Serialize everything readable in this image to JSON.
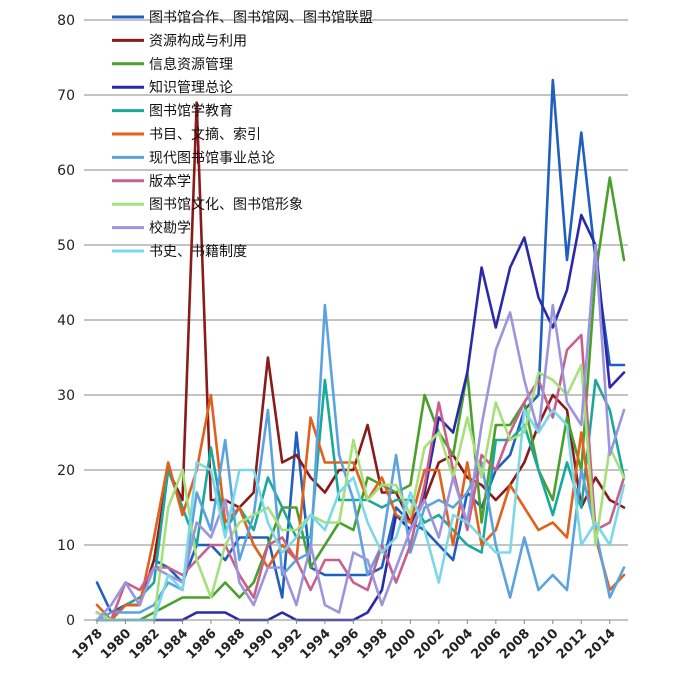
{
  "chart_data": {
    "type": "line",
    "title": "",
    "xlabel": "",
    "ylabel": "",
    "x": [
      1978,
      1979,
      1980,
      1981,
      1982,
      1983,
      1984,
      1985,
      1986,
      1987,
      1988,
      1989,
      1990,
      1991,
      1992,
      1993,
      1994,
      1995,
      1996,
      1997,
      1998,
      1999,
      2000,
      2001,
      2002,
      2003,
      2004,
      2005,
      2006,
      2007,
      2008,
      2009,
      2010,
      2011,
      2012,
      2013,
      2014,
      2015
    ],
    "x_ticks": [
      "1978",
      "1980",
      "1982",
      "1984",
      "1986",
      "1988",
      "1990",
      "1992",
      "1994",
      "1996",
      "1998",
      "2000",
      "2002",
      "2004",
      "2006",
      "2008",
      "2010",
      "2012",
      "2014"
    ],
    "y_ticks": [
      "0",
      "10",
      "20",
      "30",
      "40",
      "50",
      "60",
      "70",
      "80"
    ],
    "ylim": [
      0,
      80
    ],
    "grid": "horizontal",
    "legend_position": "top-left",
    "series": [
      {
        "name": "图书馆合作、图书馆网、图书馆联盟",
        "color": "#1f5fbf",
        "values": [
          5,
          1,
          2,
          2,
          8,
          7,
          5,
          10,
          10,
          8,
          11,
          11,
          11,
          3,
          25,
          7,
          6,
          6,
          6,
          6,
          7,
          15,
          13,
          12,
          10,
          8,
          17,
          15,
          20,
          22,
          28,
          30,
          72,
          48,
          65,
          48,
          34,
          34
        ]
      },
      {
        "name": "资源构成与利用",
        "color": "#8b1a1a",
        "values": [
          1,
          0,
          2,
          2,
          8,
          20,
          16,
          69,
          16,
          16,
          15,
          17,
          35,
          21,
          22,
          19,
          17,
          20,
          20,
          26,
          17,
          17,
          13,
          16,
          21,
          22,
          19,
          18,
          16,
          18,
          21,
          26,
          30,
          28,
          15,
          19,
          16,
          15
        ]
      },
      {
        "name": "信息资源管理",
        "color": "#4aa02c",
        "values": [
          0,
          0,
          0,
          0,
          1,
          2,
          3,
          3,
          3,
          5,
          3,
          5,
          10,
          15,
          15,
          7,
          10,
          13,
          12,
          19,
          18,
          17,
          18,
          30,
          25,
          22,
          33,
          13,
          26,
          26,
          29,
          20,
          16,
          27,
          20,
          46,
          59,
          48
        ]
      },
      {
        "name": "知识管理总论",
        "color": "#2a2aa8",
        "values": [
          0,
          0,
          0,
          0,
          0,
          0,
          0,
          1,
          1,
          1,
          0,
          0,
          0,
          1,
          0,
          0,
          0,
          0,
          0,
          1,
          4,
          14,
          12,
          17,
          27,
          25,
          33,
          47,
          39,
          47,
          51,
          43,
          39,
          44,
          54,
          50,
          31,
          33
        ]
      },
      {
        "name": "图书馆学教育",
        "color": "#1aa89c",
        "values": [
          1,
          0,
          2,
          3,
          5,
          20,
          15,
          10,
          23,
          12,
          15,
          12,
          19,
          15,
          11,
          11,
          32,
          16,
          16,
          16,
          15,
          16,
          16,
          13,
          14,
          12,
          10,
          9,
          24,
          24,
          26,
          20,
          14,
          21,
          15,
          32,
          28,
          19
        ]
      },
      {
        "name": "书目、文摘、索引",
        "color": "#e0601c",
        "values": [
          2,
          0,
          2,
          2,
          11,
          21,
          14,
          20,
          30,
          13,
          15,
          10,
          7,
          10,
          8,
          27,
          21,
          21,
          21,
          16,
          19,
          14,
          13,
          20,
          20,
          10,
          21,
          10,
          12,
          18,
          15,
          12,
          13,
          11,
          25,
          11,
          4,
          6
        ]
      },
      {
        "name": "现代图书馆事业总论",
        "color": "#5ba3e0",
        "values": [
          0,
          1,
          1,
          1,
          2,
          5,
          4,
          17,
          12,
          24,
          8,
          14,
          28,
          6,
          8,
          9,
          42,
          22,
          16,
          6,
          10,
          22,
          9,
          15,
          16,
          15,
          17,
          21,
          10,
          3,
          11,
          4,
          6,
          4,
          20,
          12,
          3,
          7
        ]
      },
      {
        "name": "版本学",
        "color": "#c8608e",
        "values": [
          0,
          0,
          5,
          4,
          7,
          7,
          6,
          8,
          10,
          10,
          6,
          3,
          10,
          11,
          8,
          4,
          8,
          8,
          5,
          4,
          10,
          5,
          10,
          18,
          29,
          20,
          12,
          22,
          20,
          25,
          29,
          32,
          27,
          36,
          38,
          12,
          13,
          19
        ]
      },
      {
        "name": "图书馆文化、图书馆形象",
        "color": "#a6e07a",
        "values": [
          1,
          0,
          0,
          0,
          0,
          15,
          20,
          8,
          3,
          10,
          13,
          14,
          15,
          12,
          12,
          14,
          13,
          13,
          24,
          16,
          18,
          18,
          14,
          23,
          25,
          19,
          27,
          19,
          29,
          24,
          25,
          33,
          32,
          30,
          34,
          10,
          23,
          19
        ]
      },
      {
        "name": "校勘学",
        "color": "#9c94dc",
        "values": [
          0,
          2,
          5,
          2,
          7,
          6,
          5,
          13,
          11,
          16,
          5,
          2,
          7,
          7,
          2,
          10,
          2,
          1,
          9,
          8,
          2,
          7,
          12,
          16,
          11,
          19,
          13,
          26,
          36,
          41,
          32,
          25,
          42,
          29,
          26,
          50,
          22,
          28
        ]
      },
      {
        "name": "书史、书籍制度",
        "color": "#7ad8e8",
        "values": [
          0,
          0,
          0,
          0,
          0,
          6,
          4,
          21,
          20,
          11,
          20,
          20,
          13,
          9,
          11,
          14,
          12,
          17,
          19,
          13,
          9,
          11,
          17,
          12,
          5,
          14,
          13,
          11,
          9,
          9,
          28,
          25,
          28,
          26,
          10,
          13,
          10,
          18
        ]
      }
    ]
  }
}
